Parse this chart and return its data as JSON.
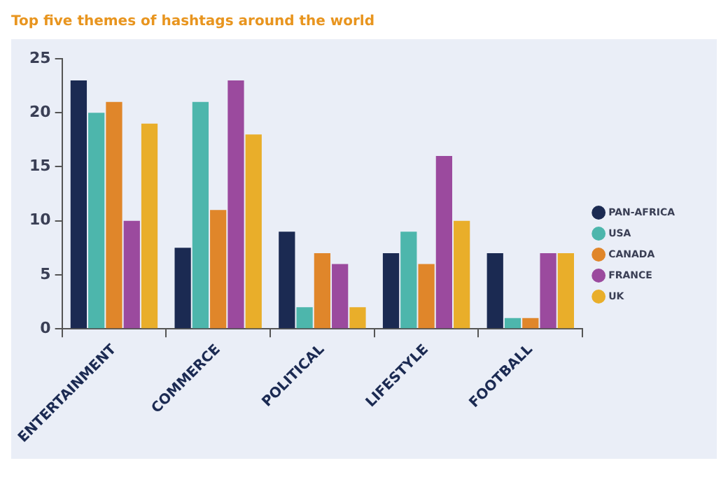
{
  "chart_data": {
    "type": "bar",
    "title": "Top five themes of hashtags around the world",
    "categories": [
      "ENTERTAINMENT",
      "COMMERCE",
      "POLITICAL",
      "LIFESTYLE",
      "FOOTBALL"
    ],
    "series": [
      {
        "name": "PAN-AFRICA",
        "color": "#1b2a52",
        "values": [
          23,
          7.5,
          9,
          7,
          7
        ]
      },
      {
        "name": "USA",
        "color": "#4db6ac",
        "values": [
          20,
          21,
          2,
          9,
          1
        ]
      },
      {
        "name": "CANADA",
        "color": "#e0862a",
        "values": [
          21,
          11,
          7,
          6,
          1
        ]
      },
      {
        "name": "FRANCE",
        "color": "#9b4a9e",
        "values": [
          10,
          23,
          6,
          16,
          7
        ]
      },
      {
        "name": "UK",
        "color": "#e9ae2a",
        "values": [
          19,
          18,
          2,
          10,
          7
        ]
      }
    ],
    "ylim": [
      0,
      25
    ],
    "yticks": [
      0,
      5,
      10,
      15,
      20,
      25
    ],
    "grid": false,
    "legend": "right"
  }
}
